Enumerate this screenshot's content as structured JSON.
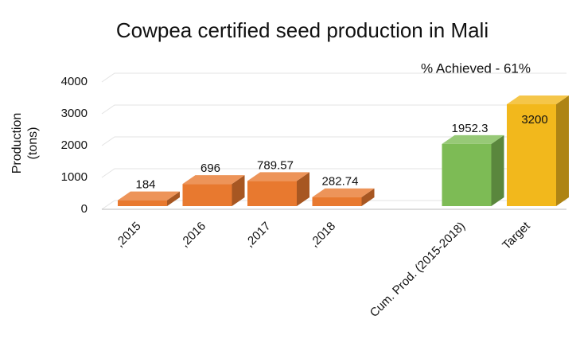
{
  "chart_data": {
    "type": "bar3d",
    "title": "Cowpea certified seed production in Mali",
    "annotation": "% Achieved - 61%",
    "y_label": "Production (tons)",
    "categories": [
      ",2015",
      ",2016",
      ",2017",
      ",2018",
      "Cum. Prod. (2015-2018)",
      "Target"
    ],
    "values": [
      184,
      696,
      789.57,
      282.74,
      1952.3,
      3200
    ],
    "colors": [
      "#e8792f",
      "#e8792f",
      "#e8792f",
      "#e8792f",
      "#7dbb55",
      "#f2b81c"
    ],
    "ylim": [
      0,
      4000
    ],
    "yticks": [
      0,
      1000,
      2000,
      3000,
      4000
    ],
    "grid": true
  }
}
